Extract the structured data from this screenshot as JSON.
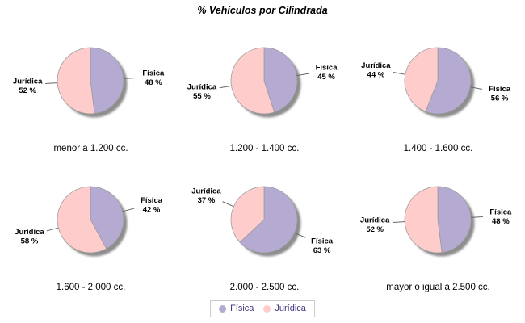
{
  "chart_data": {
    "type": "pie",
    "title": "% Vehículos por Cilindrada",
    "series_names": [
      "Física",
      "Jurídica"
    ],
    "value_suffix": " %",
    "layout": "2 rows x 3 columns of pies, legend bottom center",
    "colors": {
      "fisica": "#b5aad2",
      "juridica": "#fdcccb",
      "outline": "#9b9b9b",
      "shadow": "#8e8e8e",
      "leader_line": "#666666",
      "legend_text": "#3f3680",
      "legend_border": "#c9c9c9",
      "label_text": "#000000"
    },
    "legend": {
      "position": "bottom",
      "entries": [
        "Física",
        "Jurídica"
      ]
    },
    "pies": [
      {
        "category": "menor a 1.200 cc.",
        "values": [
          48,
          52
        ]
      },
      {
        "category": "1.200 - 1.400 cc.",
        "values": [
          45,
          55
        ]
      },
      {
        "category": "1.400 - 1.600 cc.",
        "values": [
          56,
          44
        ]
      },
      {
        "category": "1.600 - 2.000 cc.",
        "values": [
          42,
          58
        ]
      },
      {
        "category": "2.000 - 2.500 cc.",
        "values": [
          63,
          37
        ]
      },
      {
        "category": "mayor o igual a 2.500 cc.",
        "values": [
          48,
          52
        ]
      }
    ]
  }
}
